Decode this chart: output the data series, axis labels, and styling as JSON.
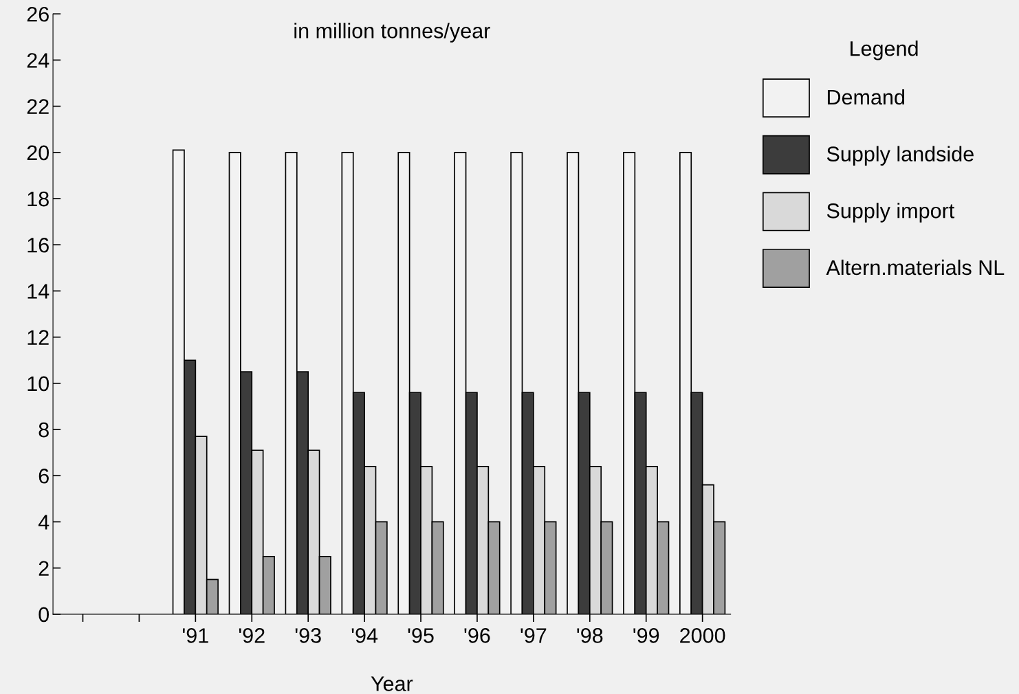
{
  "chart_data": {
    "type": "bar",
    "title": "in million tonnes/year",
    "xlabel": "Year",
    "legend_title": "Legend",
    "categories": [
      null,
      null,
      "'91",
      "'92",
      "'93",
      "'94",
      "'95",
      "'96",
      "'97",
      "'98",
      "'99",
      "2000"
    ],
    "series": [
      {
        "name": "Demand",
        "color": "#f2f2f2",
        "values": [
          null,
          null,
          20.1,
          20,
          20,
          20,
          20,
          20,
          20,
          20,
          20,
          20
        ]
      },
      {
        "name": "Supply landside",
        "color": "#3c3c3c",
        "values": [
          null,
          null,
          11,
          10.5,
          10.5,
          9.6,
          9.6,
          9.6,
          9.6,
          9.6,
          9.6,
          9.6
        ]
      },
      {
        "name": "Supply import",
        "color": "#d9d9d9",
        "values": [
          null,
          null,
          7.7,
          7.1,
          7.1,
          6.4,
          6.4,
          6.4,
          6.4,
          6.4,
          6.4,
          5.6
        ]
      },
      {
        "name": "Altern.materials NL",
        "color": "#a0a0a0",
        "values": [
          null,
          null,
          1.5,
          2.5,
          2.5,
          4,
          4,
          4,
          4,
          4,
          4,
          4
        ]
      }
    ],
    "ylim": [
      0,
      26
    ],
    "yticks": [
      0,
      2,
      4,
      6,
      8,
      10,
      12,
      14,
      16,
      18,
      20,
      22,
      24,
      26
    ],
    "grid": false,
    "legend": "right"
  }
}
